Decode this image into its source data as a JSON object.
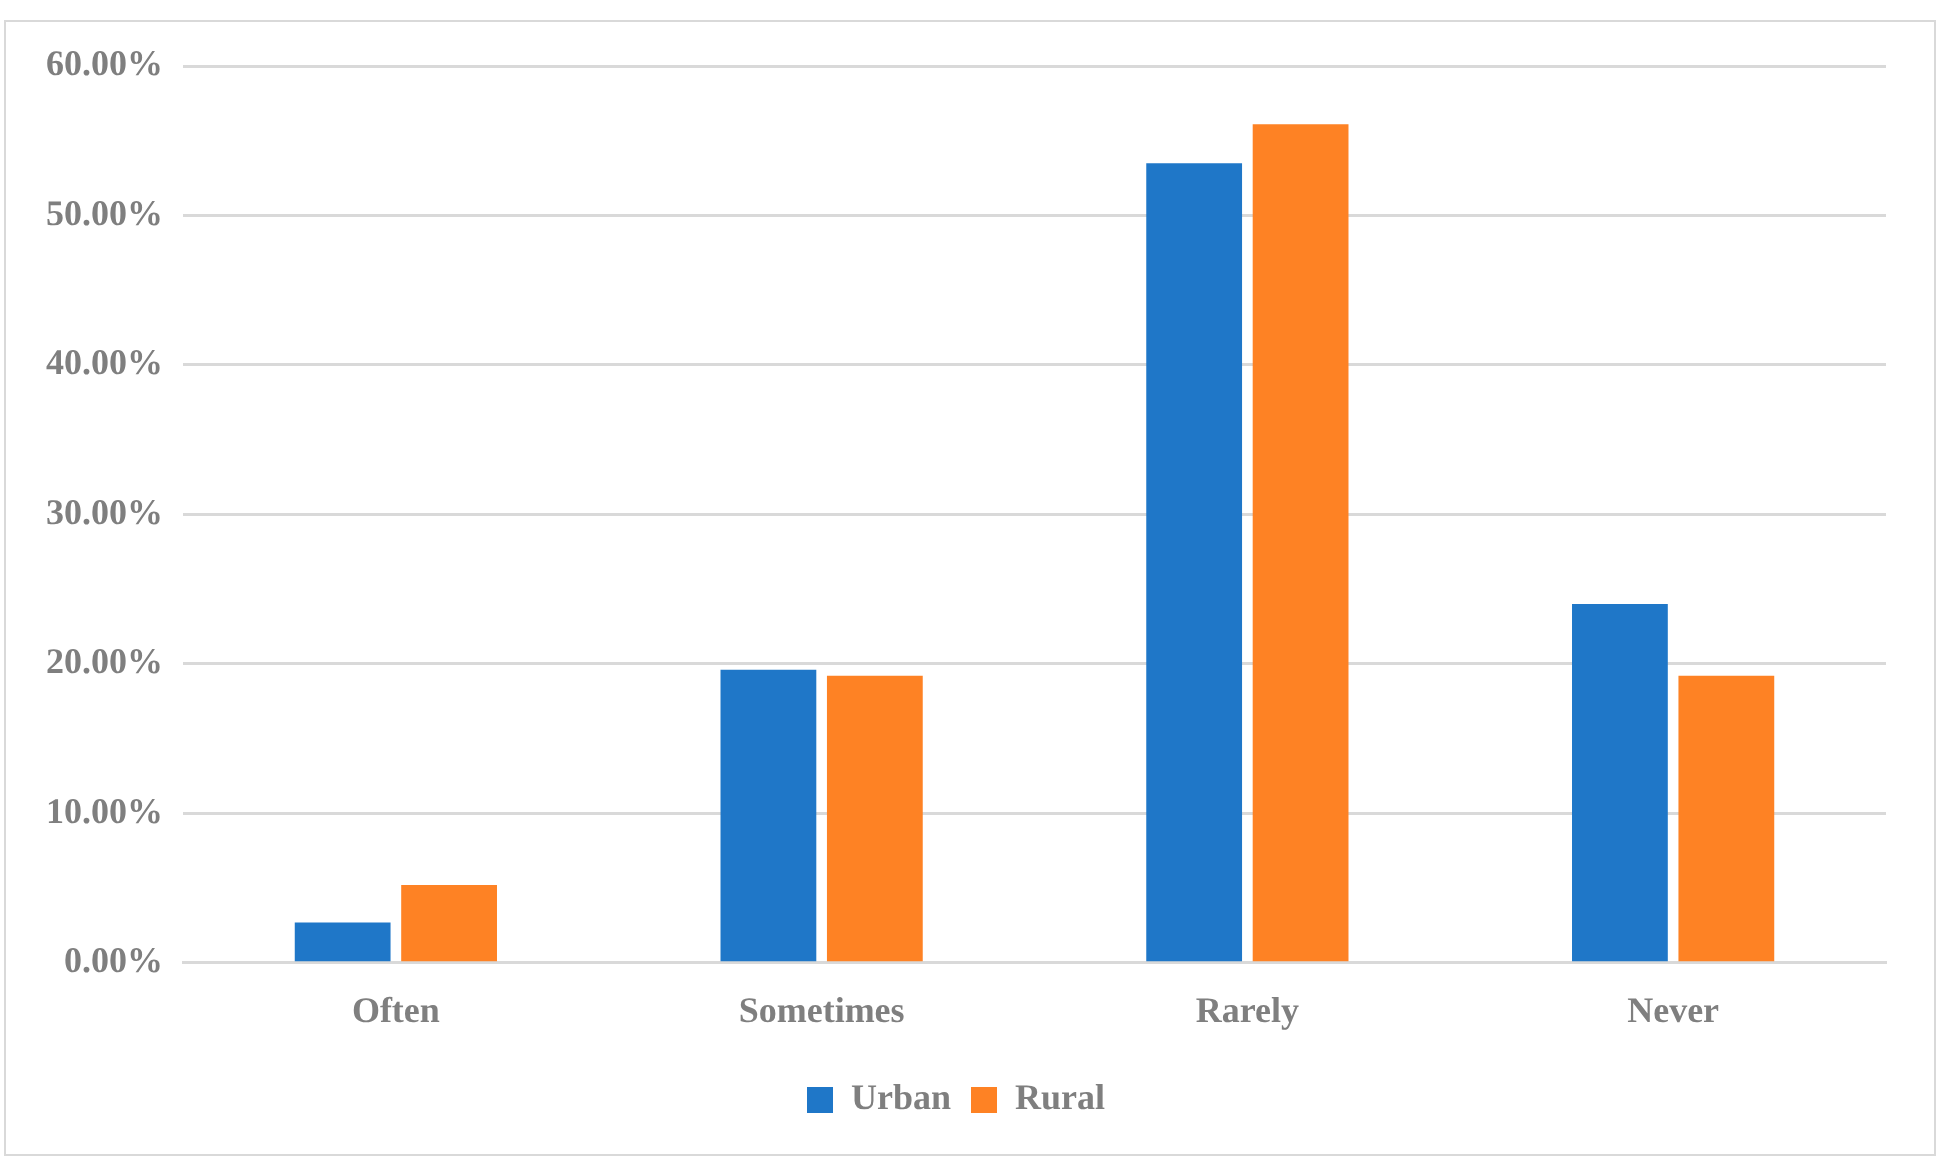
{
  "chart_data": {
    "type": "bar",
    "categories": [
      "Often",
      "Sometimes",
      "Rarely",
      "Never"
    ],
    "series": [
      {
        "name": "Urban",
        "color": "#1f77c8",
        "values": [
          2.7,
          19.6,
          53.5,
          24.0
        ]
      },
      {
        "name": "Rural",
        "color": "#fe8224",
        "values": [
          5.2,
          19.2,
          56.1,
          19.2
        ]
      }
    ],
    "ylim": [
      0,
      60
    ],
    "yticks": [
      {
        "value": 0,
        "label": "0.00%"
      },
      {
        "value": 10,
        "label": "10.00%"
      },
      {
        "value": 20,
        "label": "20.00%"
      },
      {
        "value": 30,
        "label": "30.00%"
      },
      {
        "value": 40,
        "label": "40.00%"
      },
      {
        "value": 50,
        "label": "50.00%"
      },
      {
        "value": 60,
        "label": "60.00%"
      }
    ],
    "grid": "y",
    "legend": "bottom"
  }
}
